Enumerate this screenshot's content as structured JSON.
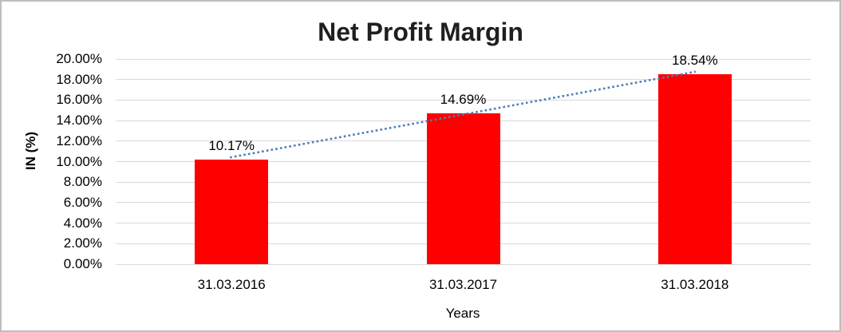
{
  "frame": {
    "background": "#ffffff",
    "border_color": "#bdbdbd"
  },
  "chart_data": {
    "type": "bar",
    "title": "Net Profit Margin",
    "categories": [
      "31.03.2016",
      "31.03.2017",
      "31.03.2018"
    ],
    "values": [
      10.17,
      14.69,
      18.54
    ],
    "data_labels": [
      "10.17%",
      "14.69%",
      "18.54%"
    ],
    "xlabel": "Years",
    "ylabel": "IN (%)",
    "ylim": [
      0,
      20
    ],
    "y_tick_step": 2,
    "y_tick_labels": [
      "0.00%",
      "2.00%",
      "4.00%",
      "6.00%",
      "8.00%",
      "10.00%",
      "12.00%",
      "14.00%",
      "16.00%",
      "18.00%",
      "20.00%"
    ],
    "grid": true,
    "legend": "none",
    "bar_color": "#ff0000",
    "gridline_color": "#d9d9d9",
    "text_color": "#000000",
    "title_color": "#1f1f1f",
    "trendline": {
      "type": "linear",
      "style": "dotted",
      "color": "#4a7ebb"
    }
  }
}
